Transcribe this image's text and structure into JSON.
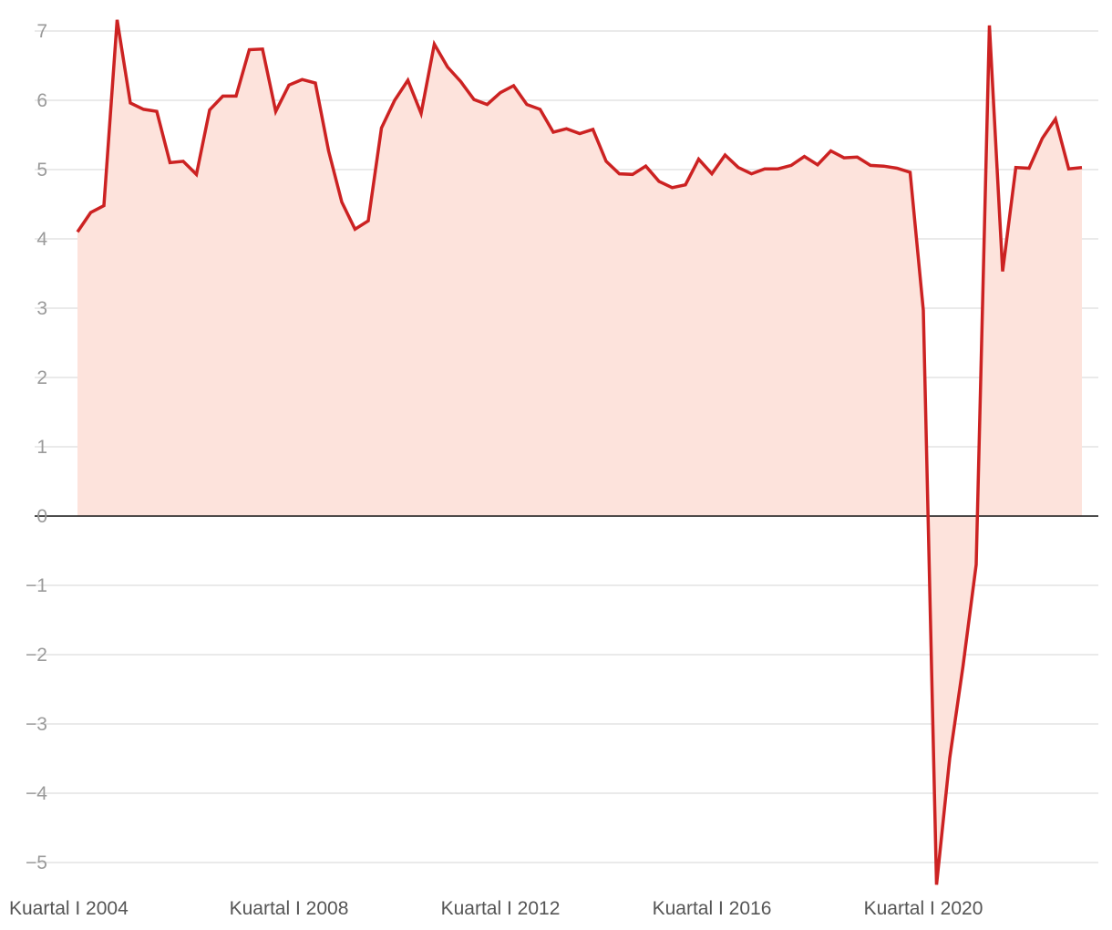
{
  "chart_data": {
    "type": "area",
    "title": "",
    "xlabel": "",
    "ylabel": "",
    "ylim": [
      -5.3,
      7.3
    ],
    "y_ticks": [
      7,
      6,
      5,
      4,
      3,
      2,
      1,
      0,
      -1,
      -2,
      -3,
      -4,
      -5
    ],
    "y_tick_labels": [
      "7",
      "6",
      "5",
      "4",
      "3",
      "2",
      "1",
      "0",
      "−1",
      "−2",
      "−3",
      "−4",
      "−5"
    ],
    "x_ticks": [
      {
        "quarter_index": 0,
        "label": "Kuartal I 2004"
      },
      {
        "quarter_index": 16,
        "label": "Kuartal I 2008"
      },
      {
        "quarter_index": 32,
        "label": "Kuartal I 2012"
      },
      {
        "quarter_index": 48,
        "label": "Kuartal I 2016"
      },
      {
        "quarter_index": 64,
        "label": "Kuartal I 2020"
      }
    ],
    "grid": true,
    "colors": {
      "line": "#cc2222",
      "fill": "#fde3dc",
      "grid": "#e3e3e3",
      "zero_line": "#111111"
    },
    "series": [
      {
        "start": "Kuartal I 2004",
        "frequency": "quarterly",
        "values": [
          4.1,
          4.38,
          4.48,
          7.16,
          5.96,
          5.87,
          5.84,
          5.1,
          5.12,
          4.93,
          5.86,
          6.06,
          6.06,
          6.73,
          6.74,
          5.84,
          6.22,
          6.3,
          6.25,
          5.27,
          4.53,
          4.14,
          4.26,
          5.6,
          6.0,
          6.29,
          5.81,
          6.81,
          6.48,
          6.27,
          6.01,
          5.94,
          6.11,
          6.21,
          5.94,
          5.87,
          5.54,
          5.59,
          5.52,
          5.58,
          5.12,
          4.94,
          4.93,
          5.05,
          4.83,
          4.74,
          4.78,
          5.15,
          4.94,
          5.21,
          5.03,
          4.94,
          5.01,
          5.01,
          5.06,
          5.19,
          5.07,
          5.27,
          5.17,
          5.18,
          5.06,
          5.05,
          5.02,
          4.96,
          2.97,
          -5.32,
          -3.49,
          -2.17,
          -0.7,
          7.08,
          3.53,
          5.03,
          5.02,
          5.45,
          5.73,
          5.01,
          5.03
        ]
      }
    ]
  }
}
